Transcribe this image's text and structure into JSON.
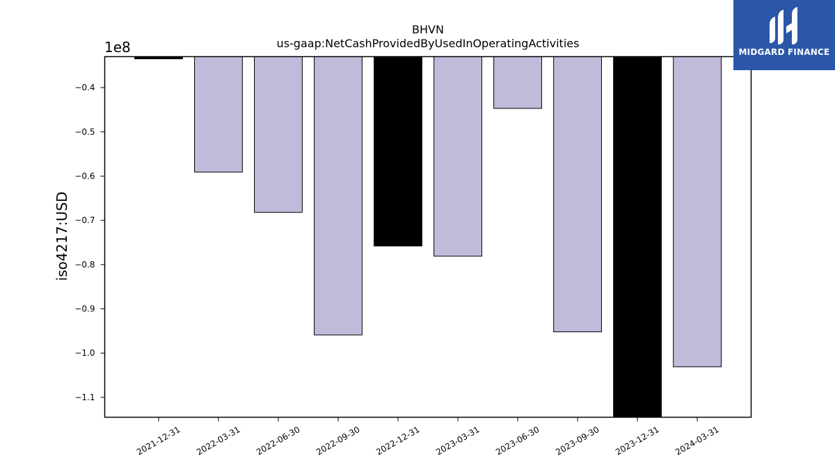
{
  "chart_data": {
    "type": "bar",
    "title": "BHVN",
    "subtitle": "us-gaap:NetCashProvidedByUsedInOperatingActivities",
    "xlabel": "",
    "ylabel": "iso4217:USD",
    "offset_label": "1e8",
    "ylim": [
      -1.145,
      -0.33
    ],
    "yticks": [
      -0.4,
      -0.5,
      -0.6,
      -0.7,
      -0.8,
      -0.9,
      -1.0,
      -1.1
    ],
    "ytick_labels": [
      "−0.4",
      "−0.5",
      "−0.6",
      "−0.7",
      "−0.8",
      "−0.9",
      "−1.0",
      "−1.1"
    ],
    "categories": [
      "2021-12-31",
      "2022-03-31",
      "2022-06-30",
      "2022-09-30",
      "2022-12-31",
      "2023-03-31",
      "2023-06-30",
      "2023-09-30",
      "2023-12-31",
      "2024-03-31"
    ],
    "values": [
      -0.335,
      -0.591,
      -0.682,
      -0.959,
      -0.758,
      -0.781,
      -0.447,
      -0.952,
      -1.145,
      -1.031
    ],
    "bar_colors": [
      "#000000",
      "#bebbdb",
      "#bebbdb",
      "#bebbdb",
      "#000000",
      "#bebbdb",
      "#bebbdb",
      "#bebbdb",
      "#000000",
      "#bebbdb"
    ],
    "grid": false
  },
  "logo": {
    "text": "MIDGARD FINANCE",
    "color": "#2b57a8"
  }
}
